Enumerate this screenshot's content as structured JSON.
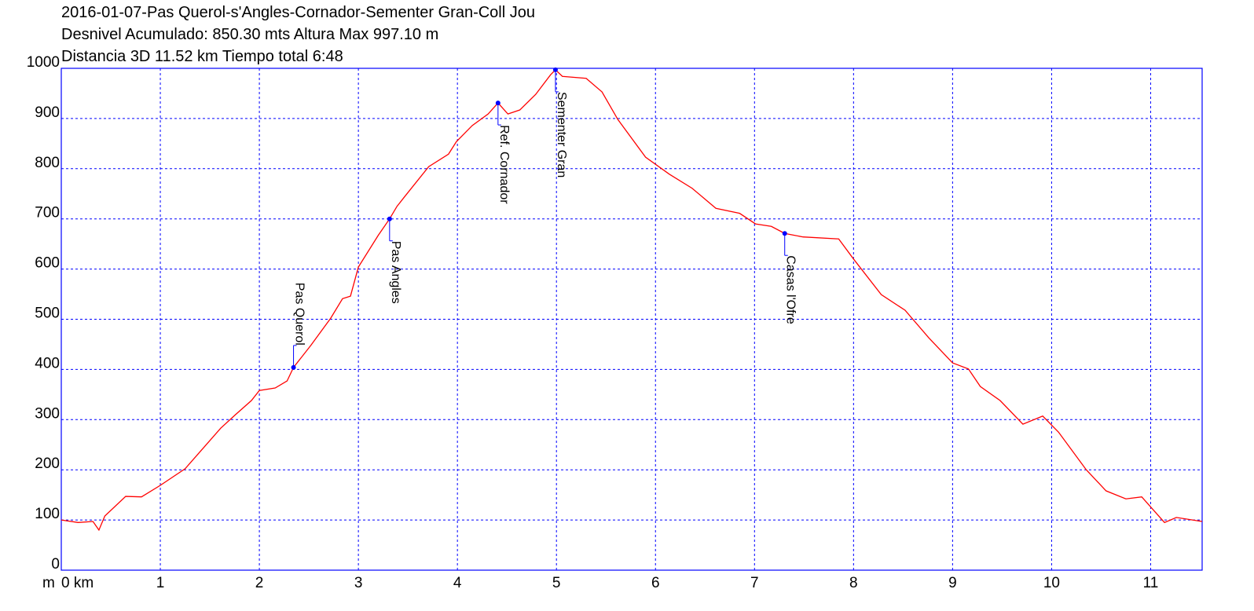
{
  "chart_data": {
    "type": "line",
    "title": [
      "2016-01-07-Pas Querol-s'Angles-Cornador-Sementer Gran-Coll Jou",
      "Desnivel Acumulado: 850.30 mts  Altura Max 997.10 m",
      "Distancia 3D 11.52 km  Tiempo total 6:48"
    ],
    "y_label": "m",
    "x": [
      0,
      0.17,
      0.32,
      0.38,
      0.44,
      0.65,
      0.81,
      1.0,
      1.25,
      1.45,
      1.61,
      1.76,
      1.92,
      2.0,
      2.16,
      2.28,
      2.345,
      2.52,
      2.72,
      2.84,
      2.92,
      3.0,
      3.2,
      3.315,
      3.39,
      3.47,
      3.71,
      3.91,
      3.99,
      4.15,
      4.31,
      4.41,
      4.51,
      4.63,
      4.79,
      4.94,
      4.99,
      5.06,
      5.3,
      5.46,
      5.62,
      5.9,
      6.14,
      6.37,
      6.61,
      6.85,
      7.01,
      7.17,
      7.305,
      7.49,
      7.85,
      8.0,
      8.28,
      8.52,
      8.76,
      9.0,
      9.16,
      9.28,
      9.48,
      9.71,
      9.91,
      10.07,
      10.35,
      10.55,
      10.75,
      10.91,
      11.14,
      11.26,
      11.52
    ],
    "series": [
      {
        "name": "Altura",
        "color": "#ff0000",
        "values": [
          100,
          95,
          97,
          80,
          108,
          147,
          146,
          169,
          202,
          247,
          283,
          310,
          338,
          358,
          363,
          377,
          404,
          448,
          502,
          541,
          546,
          604,
          667,
          700,
          725,
          745,
          804,
          829,
          854,
          886,
          909,
          931,
          909,
          917,
          948,
          987,
          997,
          984,
          980,
          953,
          898,
          823,
          789,
          761,
          721,
          711,
          690,
          685,
          671,
          664,
          660,
          620,
          549,
          518,
          463,
          413,
          401,
          366,
          338,
          291,
          307,
          275,
          200,
          158,
          142,
          146,
          95,
          105,
          97
        ]
      }
    ],
    "waypoints": [
      {
        "name": "Pas Querol",
        "x": 2.345,
        "value": 404,
        "label_side": "above"
      },
      {
        "name": "Pas Angles",
        "x": 3.315,
        "value": 700,
        "label_side": "below"
      },
      {
        "name": "Ref. Cornador",
        "x": 4.41,
        "value": 931,
        "label_side": "below"
      },
      {
        "name": "Sementer Gran",
        "x": 4.99,
        "value": 997,
        "label_side": "below"
      },
      {
        "name": "Casas l'Ofre",
        "x": 7.305,
        "value": 671,
        "label_side": "below"
      }
    ],
    "waypoint_color": "#0000ff",
    "grid_color": "#0000ff",
    "xlim": [
      0,
      11.52
    ],
    "ylim": [
      0,
      1000
    ],
    "xticks": [
      {
        "value": 0,
        "label": "0 km"
      },
      1,
      2,
      3,
      4,
      5,
      6,
      7,
      8,
      9,
      10,
      11
    ],
    "yticks": [
      0,
      100,
      200,
      300,
      400,
      500,
      600,
      700,
      800,
      900,
      1000
    ],
    "grid": true
  }
}
